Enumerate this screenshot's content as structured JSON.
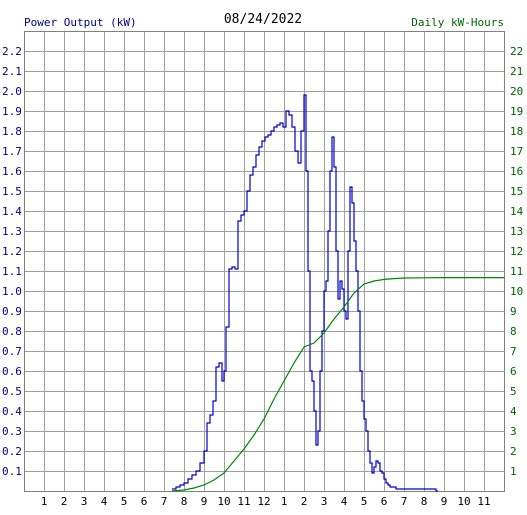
{
  "chart_data": {
    "type": "line",
    "date": "08/24/2022",
    "left_axis_label": "Power Output (kW)",
    "right_axis_label": "Daily kW-Hours",
    "x_ticks": [
      "1",
      "2",
      "3",
      "4",
      "5",
      "6",
      "7",
      "8",
      "9",
      "10",
      "11",
      "12",
      "1",
      "2",
      "3",
      "4",
      "5",
      "6",
      "7",
      "8",
      "9",
      "10",
      "11"
    ],
    "left_ticks": [
      "0.1",
      "0.2",
      "0.3",
      "0.4",
      "0.5",
      "0.6",
      "0.7",
      "0.8",
      "0.9",
      "1.0",
      "1.1",
      "1.2",
      "1.3",
      "1.4",
      "1.5",
      "1.6",
      "1.7",
      "1.8",
      "1.9",
      "2.0",
      "2.1",
      "2.2"
    ],
    "right_ticks": [
      "1",
      "2",
      "3",
      "4",
      "5",
      "6",
      "7",
      "8",
      "9",
      "10",
      "11",
      "12",
      "13",
      "14",
      "15",
      "16",
      "17",
      "18",
      "19",
      "20",
      "21",
      "22"
    ],
    "xlim": [
      0,
      24
    ],
    "ylim_left": [
      0,
      2.3
    ],
    "ylim_right": [
      0,
      23
    ],
    "grid": true,
    "colors": {
      "power": "#0000cc",
      "energy": "#008800",
      "grid": "#a0a0a0",
      "left_text": "#000080",
      "right_text": "#006600",
      "title": "#000000"
    },
    "series": [
      {
        "name": "Power Output (kW)",
        "axis": "left",
        "x": [
          7.4,
          7.6,
          7.8,
          8.0,
          8.2,
          8.4,
          8.6,
          8.8,
          9.0,
          9.15,
          9.3,
          9.45,
          9.6,
          9.75,
          9.9,
          10.0,
          10.1,
          10.25,
          10.4,
          10.55,
          10.7,
          10.85,
          11.0,
          11.15,
          11.3,
          11.45,
          11.6,
          11.75,
          11.9,
          12.05,
          12.2,
          12.35,
          12.5,
          12.65,
          12.8,
          12.95,
          13.1,
          13.25,
          13.4,
          13.55,
          13.7,
          13.85,
          14.0,
          14.1,
          14.2,
          14.3,
          14.4,
          14.5,
          14.6,
          14.7,
          14.8,
          14.9,
          15.0,
          15.1,
          15.2,
          15.3,
          15.4,
          15.5,
          15.6,
          15.7,
          15.8,
          15.9,
          16.0,
          16.1,
          16.2,
          16.3,
          16.4,
          16.5,
          16.6,
          16.7,
          16.8,
          16.9,
          17.0,
          17.1,
          17.2,
          17.3,
          17.4,
          17.5,
          17.6,
          17.7,
          17.8,
          17.9,
          18.0,
          18.1,
          18.2,
          18.3,
          18.4,
          18.6,
          18.8,
          19.0,
          19.5,
          20.0,
          20.6,
          20.7
        ],
        "y": [
          0.01,
          0.02,
          0.03,
          0.04,
          0.06,
          0.08,
          0.1,
          0.14,
          0.2,
          0.34,
          0.38,
          0.45,
          0.62,
          0.64,
          0.55,
          0.6,
          0.82,
          1.11,
          1.12,
          1.11,
          1.35,
          1.38,
          1.4,
          1.5,
          1.58,
          1.62,
          1.68,
          1.72,
          1.75,
          1.77,
          1.78,
          1.8,
          1.82,
          1.83,
          1.84,
          1.82,
          1.9,
          1.88,
          1.82,
          1.7,
          1.64,
          1.8,
          1.98,
          1.6,
          1.1,
          0.6,
          0.55,
          0.4,
          0.23,
          0.3,
          0.6,
          0.8,
          1.0,
          1.05,
          1.3,
          1.6,
          1.77,
          1.62,
          1.2,
          0.96,
          1.05,
          1.01,
          0.9,
          0.86,
          1.2,
          1.52,
          1.44,
          1.25,
          1.1,
          0.9,
          0.6,
          0.45,
          0.36,
          0.3,
          0.2,
          0.14,
          0.09,
          0.12,
          0.15,
          0.14,
          0.1,
          0.09,
          0.06,
          0.04,
          0.03,
          0.02,
          0.02,
          0.01,
          0.01,
          0.01,
          0.01,
          0.01,
          0.0,
          0.0
        ]
      },
      {
        "name": "Daily kW-Hours",
        "axis": "right",
        "x": [
          7.4,
          8.0,
          8.5,
          9.0,
          9.5,
          10.0,
          10.5,
          11.0,
          11.5,
          12.0,
          12.5,
          13.0,
          13.5,
          14.0,
          14.5,
          15.0,
          15.5,
          16.0,
          16.5,
          17.0,
          17.5,
          18.0,
          18.5,
          19.0,
          20.0,
          21.0,
          22.0,
          23.0,
          24.0
        ],
        "y": [
          0.0,
          0.05,
          0.15,
          0.3,
          0.55,
          0.9,
          1.5,
          2.1,
          2.8,
          3.6,
          4.6,
          5.5,
          6.4,
          7.2,
          7.4,
          7.9,
          8.6,
          9.2,
          9.9,
          10.35,
          10.5,
          10.58,
          10.62,
          10.65,
          10.66,
          10.67,
          10.67,
          10.67,
          10.67
        ]
      }
    ]
  }
}
